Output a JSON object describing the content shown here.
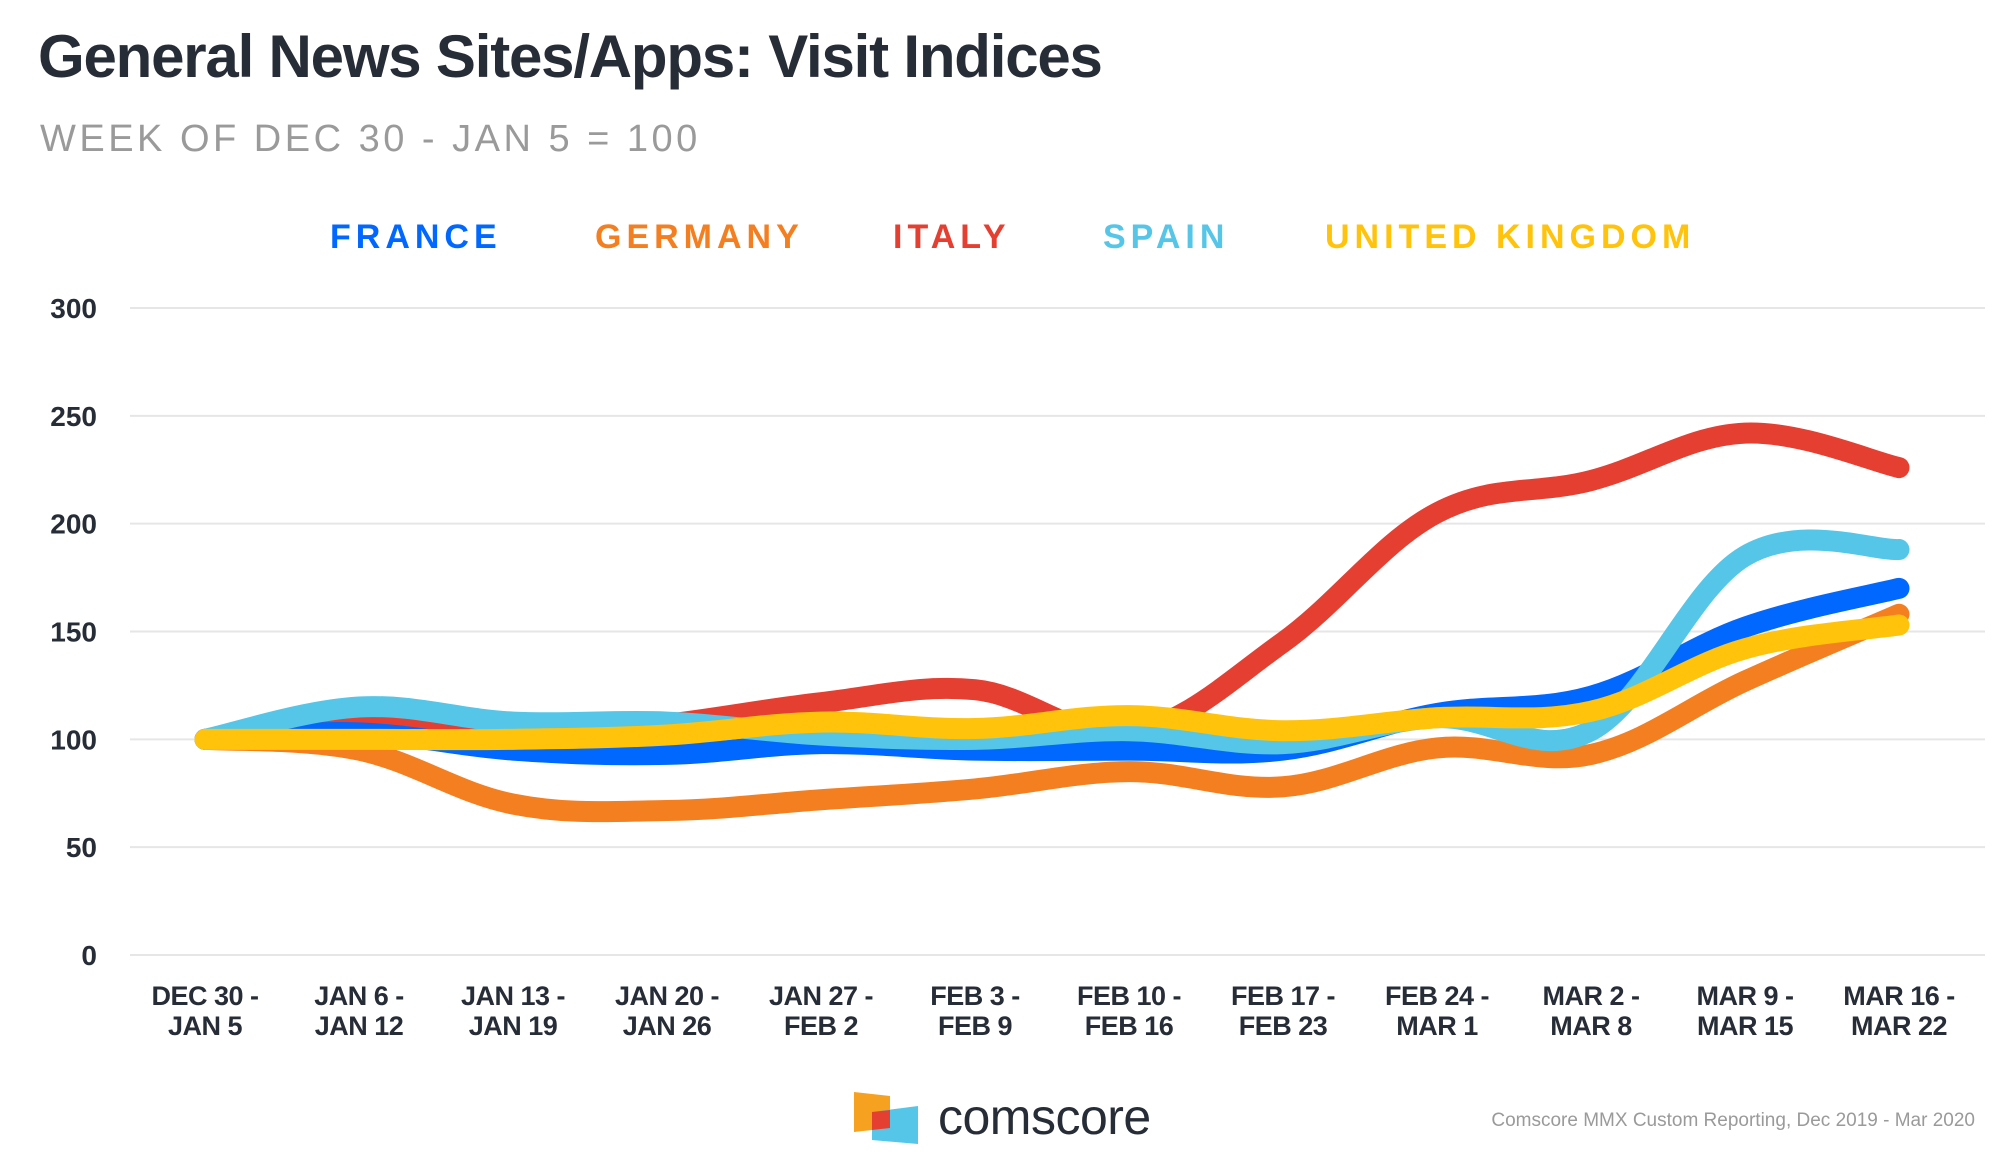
{
  "header": {
    "title": "General News Sites/Apps: Visit Indices",
    "subtitle": "WEEK OF DEC 30 - JAN 5 = 100"
  },
  "footer": {
    "brand": "comscore",
    "logo_icon": "comscore-logo-icon",
    "source": "Comscore MMX Custom Reporting, Dec 2019 - Mar 2020"
  },
  "chart_data": {
    "type": "line",
    "title": "General News Sites/Apps: Visit Indices",
    "subtitle": "WEEK OF DEC 30 - JAN 5 = 100",
    "xlabel": "",
    "ylabel": "",
    "ylim": [
      0,
      300
    ],
    "yticks": [
      0,
      50,
      100,
      150,
      200,
      250,
      300
    ],
    "grid": true,
    "legend_position": "top",
    "smooth": true,
    "categories": [
      [
        "DEC 30 -",
        "JAN 5"
      ],
      [
        "JAN 6 -",
        "JAN 12"
      ],
      [
        "JAN 13 -",
        "JAN 19"
      ],
      [
        "JAN 20 -",
        "JAN 26"
      ],
      [
        "JAN 27 -",
        "FEB 2"
      ],
      [
        "FEB 3 -",
        "FEB 9"
      ],
      [
        "FEB 10 -",
        "FEB 16"
      ],
      [
        "FEB 17 -",
        "FEB 23"
      ],
      [
        "FEB 24 -",
        "MAR 1"
      ],
      [
        "MAR 2 -",
        "MAR 8"
      ],
      [
        "MAR 9 -",
        "MAR 15"
      ],
      [
        "MAR 16 -",
        "MAR 22"
      ]
    ],
    "series": [
      {
        "name": "FRANCE",
        "color": "#0068ff",
        "values": [
          100,
          103,
          95,
          93,
          98,
          95,
          95,
          95,
          112,
          120,
          152,
          170
        ]
      },
      {
        "name": "GERMANY",
        "color": "#f47f20",
        "values": [
          100,
          95,
          70,
          67,
          72,
          77,
          85,
          78,
          96,
          93,
          127,
          158
        ]
      },
      {
        "name": "ITALY",
        "color": "#e53f32",
        "values": [
          100,
          108,
          100,
          107,
          117,
          123,
          103,
          145,
          205,
          220,
          242,
          226
        ]
      },
      {
        "name": "SPAIN",
        "color": "#55c6e8",
        "values": [
          100,
          115,
          108,
          108,
          102,
          100,
          104,
          98,
          110,
          104,
          185,
          188
        ]
      },
      {
        "name": "UNITED KINGDOM",
        "color": "#ffc30b",
        "values": [
          100,
          100,
          100,
          102,
          108,
          105,
          111,
          104,
          110,
          113,
          142,
          153
        ]
      }
    ],
    "draw_order": [
      "ITALY",
      "GERMANY",
      "FRANCE",
      "SPAIN",
      "UNITED KINGDOM"
    ]
  }
}
